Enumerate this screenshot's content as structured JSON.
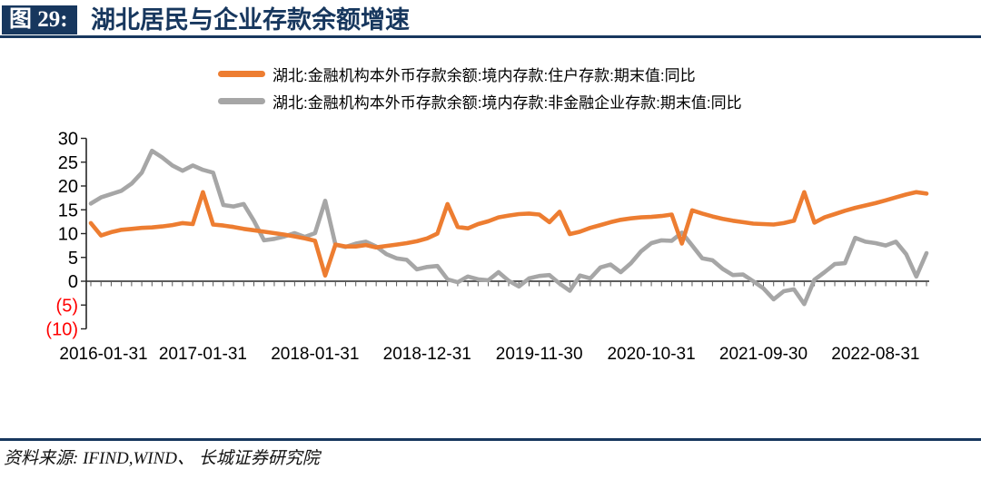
{
  "header": {
    "badge": "图 29:",
    "title": "湖北居民与企业存款余额增速"
  },
  "legend": {
    "items": [
      {
        "label": "湖北:金融机构本外币存款余额:境内存款:住户存款:期末值:同比",
        "color": "#ED7D31"
      },
      {
        "label": "湖北:金融机构本外币存款余额:境内存款:非金融企业存款:期末值:同比",
        "color": "#A6A6A6"
      }
    ]
  },
  "footer": {
    "source": "资料来源: IFIND,WIND、 长城证券研究院"
  },
  "colors": {
    "navy": "#17375E",
    "axis": "#262626",
    "tick": "#595959",
    "label": "#000000",
    "negative_label": "#FF0000",
    "household": "#ED7D31",
    "corporate": "#A6A6A6"
  },
  "chart_data": {
    "type": "line",
    "title": "湖北居民与企业存款余额增速",
    "ylabel": "",
    "xlabel": "",
    "ylim": [
      -10,
      30
    ],
    "grid": false,
    "legend_position": "top",
    "y_ticks": [
      {
        "label": "30",
        "value": 30,
        "negative": false
      },
      {
        "label": "25",
        "value": 25,
        "negative": false
      },
      {
        "label": "20",
        "value": 20,
        "negative": false
      },
      {
        "label": "15",
        "value": 15,
        "negative": false
      },
      {
        "label": "10",
        "value": 10,
        "negative": false
      },
      {
        "label": "5",
        "value": 5,
        "negative": false
      },
      {
        "label": "0",
        "value": 0,
        "negative": false
      },
      {
        "label": "(5)",
        "value": -5,
        "negative": true
      },
      {
        "label": "(10)",
        "value": -10,
        "negative": true
      }
    ],
    "x_tick_labels": [
      "2016-01-31",
      "2017-01-31",
      "2018-01-31",
      "2018-12-31",
      "2019-11-30",
      "2020-10-31",
      "2021-09-30",
      "2022-08-31"
    ],
    "x_tick_indices": [
      0,
      11,
      22,
      33,
      44,
      55,
      66,
      77
    ],
    "n_points": 83,
    "series": [
      {
        "name": "湖北:金融机构本外币存款余额:境内存款:住户存款:期末值:同比",
        "color": "#ED7D31",
        "values": [
          12.2,
          9.6,
          10.3,
          10.8,
          11.0,
          11.2,
          11.3,
          11.5,
          11.8,
          12.2,
          12.0,
          18.7,
          11.9,
          11.7,
          11.4,
          11.0,
          10.7,
          10.4,
          10.1,
          9.8,
          9.4,
          9.0,
          8.5,
          1.2,
          7.7,
          7.3,
          7.3,
          7.6,
          7.1,
          7.4,
          7.7,
          8.0,
          8.4,
          9.0,
          10.0,
          16.2,
          11.4,
          11.1,
          12.0,
          12.6,
          13.4,
          13.8,
          14.1,
          14.2,
          14.0,
          12.4,
          14.6,
          9.9,
          10.4,
          11.2,
          11.8,
          12.4,
          12.9,
          13.2,
          13.4,
          13.5,
          13.7,
          14.0,
          7.9,
          14.9,
          14.2,
          13.6,
          13.1,
          12.7,
          12.4,
          12.1,
          12.0,
          11.9,
          12.2,
          12.7,
          18.7,
          12.3,
          13.4,
          14.1,
          14.8,
          15.4,
          15.9,
          16.4,
          17.0,
          17.6,
          18.2,
          18.7,
          18.4
        ]
      },
      {
        "name": "湖北:金融机构本外币存款余额:境内存款:非金融企业存款:期末值:同比",
        "color": "#A6A6A6",
        "values": [
          16.3,
          17.6,
          18.3,
          19.0,
          20.5,
          22.8,
          27.4,
          26.0,
          24.3,
          23.2,
          24.3,
          23.4,
          22.8,
          16.0,
          15.7,
          16.2,
          12.7,
          8.6,
          8.9,
          9.4,
          10.1,
          9.3,
          10.1,
          16.9,
          7.7,
          7.2,
          7.9,
          8.3,
          7.3,
          5.7,
          4.8,
          4.5,
          2.5,
          3.0,
          3.2,
          0.4,
          -0.2,
          1.0,
          0.4,
          0.2,
          1.9,
          0.1,
          -1.1,
          0.6,
          1.1,
          1.3,
          -0.5,
          -2.0,
          1.2,
          0.6,
          2.9,
          3.5,
          1.9,
          3.8,
          6.3,
          8.0,
          8.6,
          8.5,
          10.2,
          7.5,
          4.8,
          4.4,
          2.6,
          1.3,
          1.4,
          0.0,
          -1.5,
          -3.8,
          -2.1,
          -1.7,
          -4.8,
          0.3,
          1.9,
          3.6,
          3.8,
          9.1,
          8.3,
          8.0,
          7.5,
          8.3,
          5.7,
          1.0,
          5.9
        ]
      }
    ]
  }
}
